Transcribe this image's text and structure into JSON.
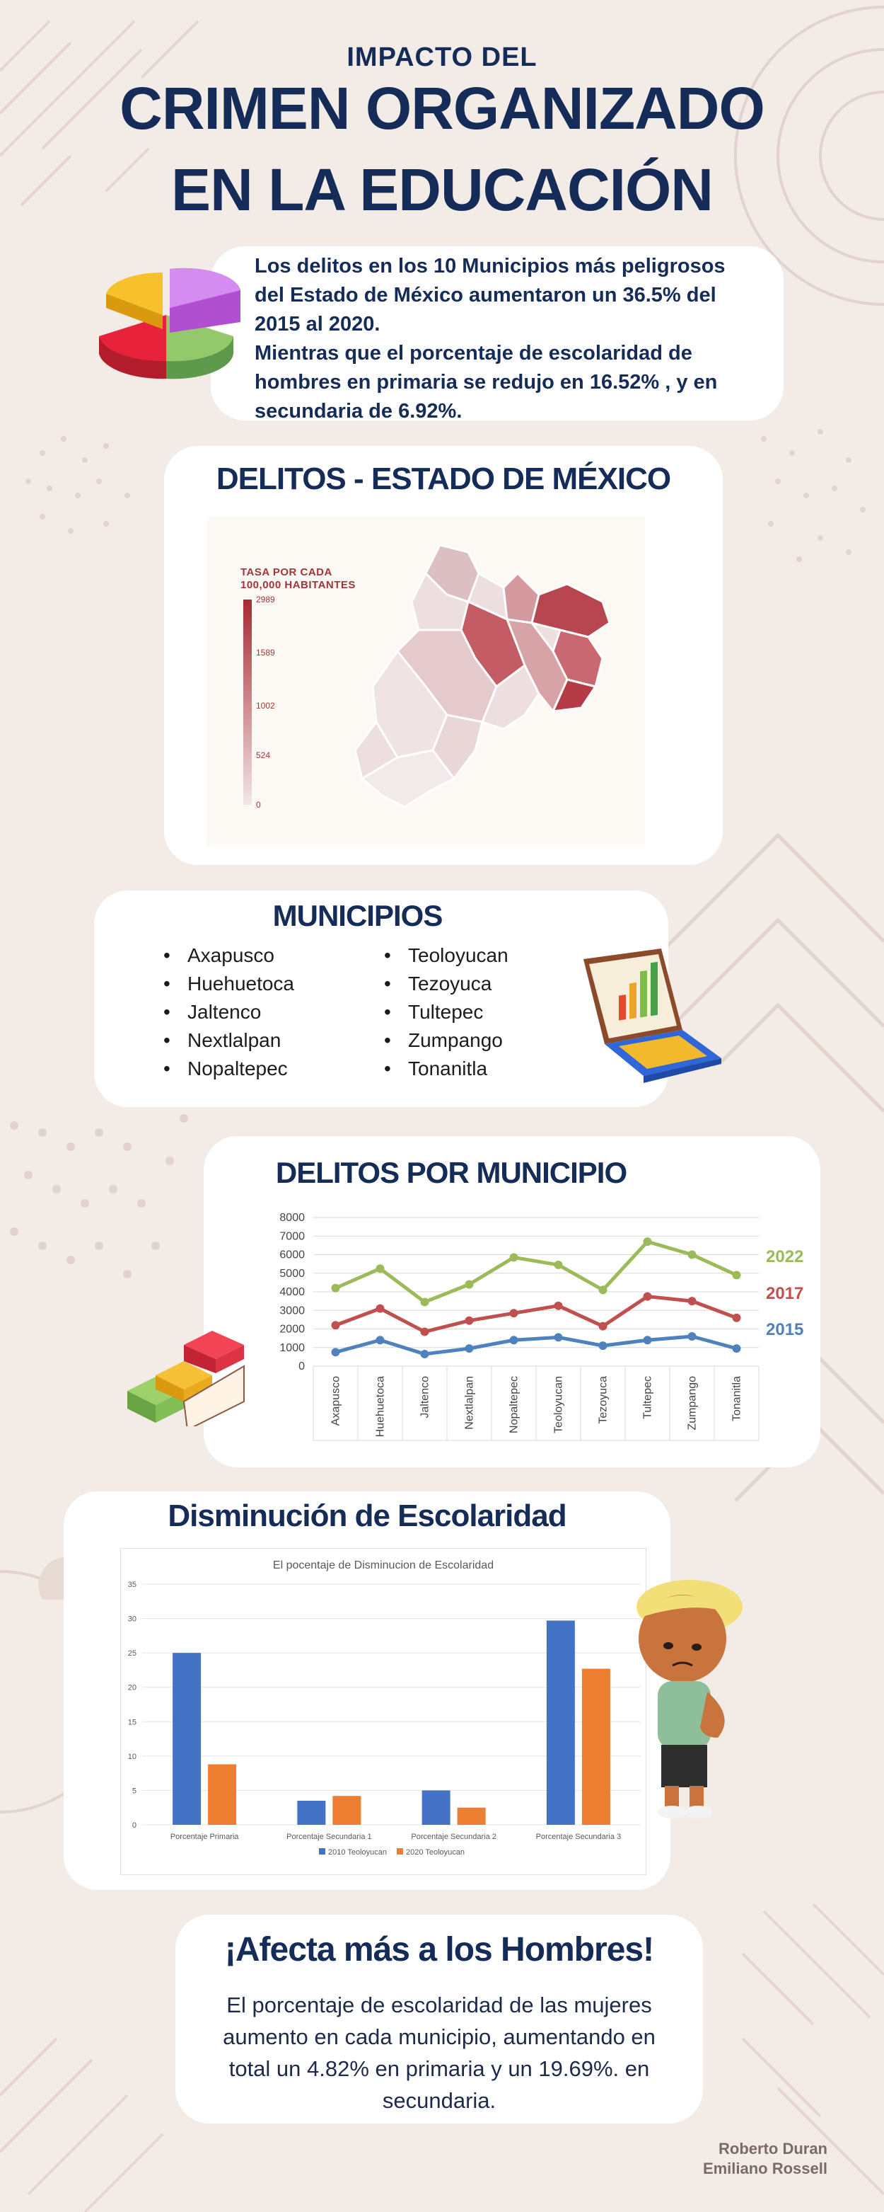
{
  "header": {
    "line1": "IMPACTO DEL",
    "line2": "CRIMEN ORGANIZADO",
    "line3": "EN LA EDUCACIÓN"
  },
  "intro": {
    "paragraph1": "Los delitos en los 10 Municipios más peligrosos  del Estado de México aumentaron un 36.5% del 2015 al 2020.",
    "paragraph2": "Mientras que  el porcentaje de escolaridad de hombres en primaria se redujo en 16.52% , y en secundaria de 6.92%."
  },
  "map_section": {
    "title": "DELITOS - ESTADO DE MÉXICO",
    "legend_title_line1": "TASA POR CADA",
    "legend_title_line2": "100,000 HABITANTES",
    "legend_ticks": [
      "2989",
      "1589",
      "1002",
      "524",
      "0"
    ]
  },
  "municipios": {
    "title": "MUNICIPIOS",
    "col1": [
      "Axapusco",
      "Huehuetoca",
      "Jaltenco",
      "Nextlalpan",
      "Nopaltepec"
    ],
    "col2": [
      "Teoloyucan",
      "Tezoyuca",
      "Tultepec",
      "Zumpango",
      "Tonanitla"
    ]
  },
  "chart_data": [
    {
      "type": "line",
      "title": "DELITOS POR MUNICIPIO",
      "categories": [
        "Axapusco",
        "Huehuetoca",
        "Jaltenco",
        "Nextlalpan",
        "Nopaltepec",
        "Teoloyucan",
        "Tezoyuca",
        "Tultepec",
        "Zumpango",
        "Tonanitla"
      ],
      "series": [
        {
          "name": "2022",
          "color": "#9bbb59",
          "values": [
            4200,
            5250,
            3450,
            4400,
            5850,
            5450,
            4100,
            6700,
            6000,
            4900
          ]
        },
        {
          "name": "2017",
          "color": "#c0504d",
          "values": [
            2200,
            3100,
            1850,
            2450,
            2850,
            3250,
            2150,
            3750,
            3500,
            2600
          ]
        },
        {
          "name": "2015",
          "color": "#4f81bd",
          "values": [
            750,
            1400,
            650,
            950,
            1400,
            1550,
            1100,
            1400,
            1600,
            950
          ]
        }
      ],
      "yticks": [
        "8000",
        "7000",
        "6000",
        "5000",
        "4000",
        "3000",
        "2000",
        "1000",
        "0"
      ],
      "ylim": [
        0,
        8000
      ],
      "grid": true
    },
    {
      "type": "bar",
      "section_title": "Disminución de Escolaridad",
      "title": "El pocentaje de Disminucion de Escolaridad",
      "categories": [
        "Porcentaje Primaria",
        "Porcentaje Secundaria 1",
        "Porcentaje Secundaria 2",
        "Porcentaje Secundaria 3"
      ],
      "series": [
        {
          "name": "2010 Teoloyucan",
          "color": "#4472c4",
          "values": [
            25,
            3.5,
            5,
            29.7
          ]
        },
        {
          "name": "2020 Teoloyucan",
          "color": "#ed7d31",
          "values": [
            8.8,
            4.2,
            2.5,
            22.7
          ]
        }
      ],
      "yticks": [
        "35",
        "30",
        "25",
        "20",
        "15",
        "10",
        "5",
        "0"
      ],
      "ylim": [
        0,
        35
      ],
      "grid": true,
      "legend": "bottom"
    }
  ],
  "conclusion": {
    "title": "¡Afecta más a los Hombres!",
    "text": "El porcentaje de escolaridad de las mujeres aumento en cada municipio, aumentando  en total un 4.82% en primaria y un 19.69%. en secundaria."
  },
  "authors": {
    "line1": "Roberto Duran",
    "line2": "Emiliano Rossell"
  }
}
